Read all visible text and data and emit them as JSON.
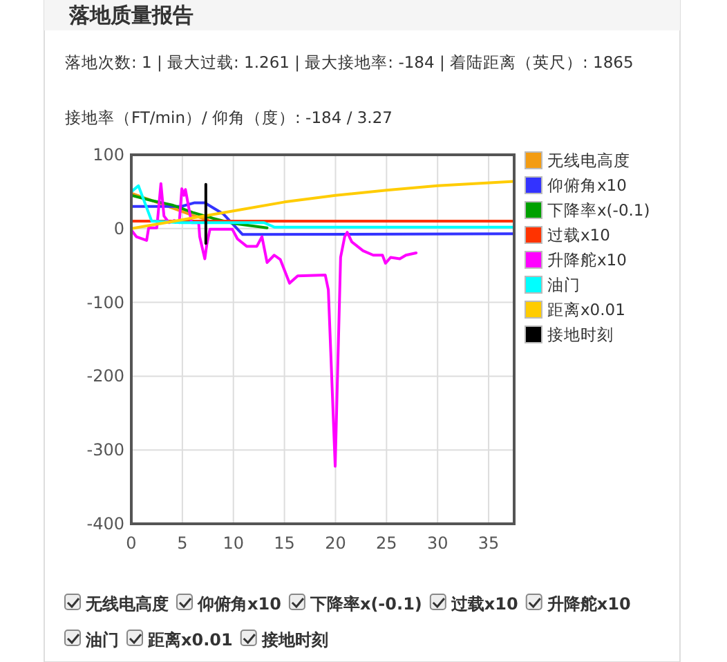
{
  "chart_data": {
    "type": "line",
    "title": "落地质量报告",
    "subtitle": "落地次数: 1 | 最大过载: 1.261 | 最大接地率: -184 | 着陆距离（英尺）: 1865",
    "annotations": [
      "接地率（FT/min）/ 仰角（度）: -184 / 3.27",
      "无线电高度",
      "仰俯角x10",
      "下降率x(-0.1)",
      "过载x10",
      "升降舵x10",
      "油门",
      "距离x0.01",
      "接地时刻"
    ],
    "xlim": [
      0,
      37.5
    ],
    "xticks": [
      0,
      5,
      10,
      15,
      20,
      25,
      30,
      35
    ],
    "ylim": [
      -400,
      100
    ],
    "yticks": [
      -400,
      -300,
      -200,
      -100,
      0,
      100
    ],
    "grid": true,
    "legend": "right",
    "marker": "none",
    "series": [
      {
        "name": "无线电高度",
        "color": "#f39c12",
        "x": [
          0,
          2,
          4,
          6,
          7.5
        ],
        "values": [
          48,
          38,
          28,
          18,
          12
        ]
      },
      {
        "name": "仰俯角x10",
        "color": "#3333ff",
        "x": [
          0,
          4.9,
          6.2,
          7.2,
          9,
          10.9,
          37.5
        ],
        "values": [
          30,
          30,
          35,
          35,
          20,
          -8,
          -7
        ]
      },
      {
        "name": "下降率x(-0.1)",
        "color": "#00a000",
        "x": [
          0,
          2,
          4,
          6,
          8,
          10,
          13.3
        ],
        "values": [
          45,
          38,
          32,
          22,
          14,
          7,
          1
        ]
      },
      {
        "name": "过载x10",
        "color": "#ff3300",
        "x": [
          0,
          37.5
        ],
        "values": [
          10,
          10
        ]
      },
      {
        "name": "升降舵x10",
        "color": "#ff00ff",
        "x": [
          0,
          0.5,
          1.5,
          1.7,
          2.5,
          2.9,
          3.2,
          3.7,
          4.2,
          4.7,
          4.95,
          5.15,
          5.3,
          5.7,
          5.9,
          6.6,
          6.7,
          7.2,
          7.4,
          7.7,
          9.9,
          10.4,
          11.3,
          12.3,
          12.8,
          13.3,
          14.0,
          14.6,
          15.5,
          16.3,
          19.0,
          19.3,
          19.97,
          20.5,
          20.9,
          21.15,
          21.6,
          22.7,
          23.7,
          24.6,
          24.9,
          25.4,
          26.3,
          26.9,
          27.9
        ],
        "values": [
          -2,
          -11,
          -16,
          1,
          1,
          61,
          17,
          8,
          11,
          8,
          54,
          45,
          53,
          23,
          8,
          8,
          -11,
          -41,
          -21,
          -1,
          -1,
          -14,
          -24,
          -24,
          -11,
          -46,
          -36,
          -42,
          -74,
          -64,
          -63,
          -83,
          -322,
          -39,
          -11,
          -5,
          -18,
          -30,
          -36,
          -36,
          -47,
          -39,
          -41,
          -36,
          -33
        ]
      },
      {
        "name": "油门",
        "color": "#00ffff",
        "x": [
          0,
          0.7,
          2,
          5,
          8,
          13,
          14,
          37.5
        ],
        "values": [
          50,
          58,
          10,
          8,
          8,
          8,
          2,
          2
        ]
      },
      {
        "name": "距离x0.01",
        "color": "#ffcc00",
        "x": [
          0,
          5,
          10,
          15,
          20,
          25,
          30,
          37.5
        ],
        "values": [
          0,
          12,
          24,
          36,
          45,
          52,
          58,
          64
        ]
      },
      {
        "name": "接地时刻",
        "color": "#000000",
        "x": [
          7.3,
          7.3
        ],
        "values": [
          60,
          -20
        ]
      }
    ]
  }
}
